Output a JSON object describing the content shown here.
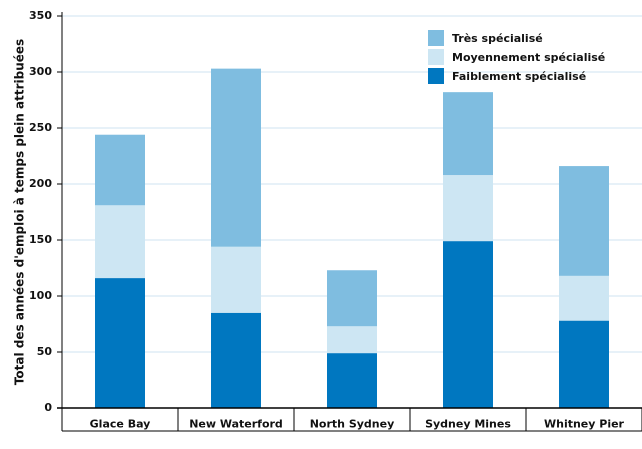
{
  "chart_data": {
    "type": "stacked-bar",
    "y_label": "Total des années d'emploi à temps plein attribuées",
    "categories": [
      "Glace Bay",
      "New Waterford",
      "North Sydney",
      "Sydney Mines",
      "Whitney Pier"
    ],
    "series": [
      {
        "name": "Faiblement spécialisé",
        "color": "#0077c0",
        "values": [
          116,
          85,
          49,
          149,
          78
        ]
      },
      {
        "name": "Moyennement spécialisé",
        "color": "#cde6f3",
        "values": [
          65,
          59,
          24,
          59,
          40
        ]
      },
      {
        "name": "Très spécialisé",
        "color": "#7fbde0",
        "values": [
          63,
          159,
          50,
          74,
          98
        ]
      }
    ],
    "ylim": [
      0,
      350
    ],
    "yticks": [
      0,
      50,
      100,
      150,
      200,
      250,
      300,
      350
    ],
    "grid": true
  }
}
